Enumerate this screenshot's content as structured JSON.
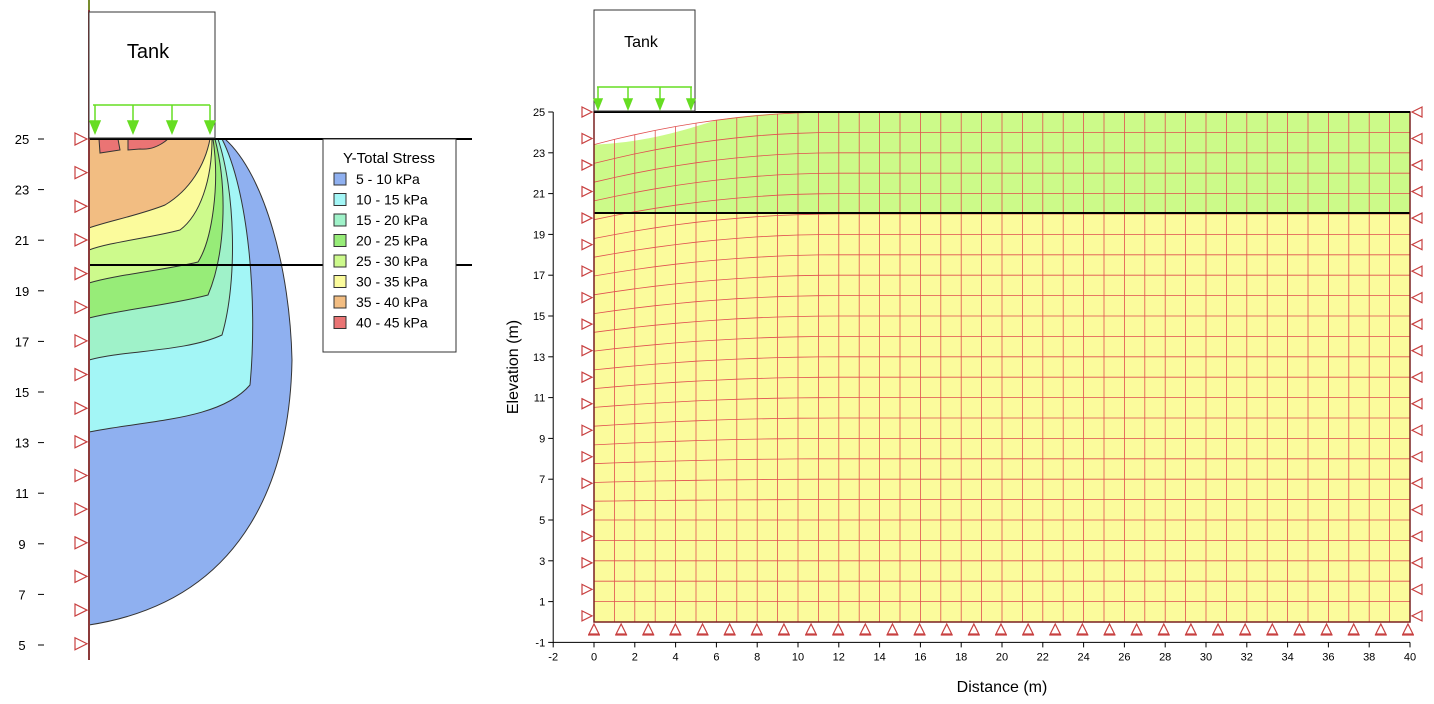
{
  "left_figure": {
    "tank_label": "Tank",
    "y_ticks": [
      "25",
      "23",
      "21",
      "19",
      "17",
      "15",
      "13",
      "11",
      "9",
      "7",
      "5"
    ],
    "legend": {
      "title": "Y-Total Stress",
      "entries": [
        {
          "label": "5 - 10 kPa",
          "color": "#8fb0f0"
        },
        {
          "label": "10 - 15 kPa",
          "color": "#a3f6f6"
        },
        {
          "label": "15 - 20 kPa",
          "color": "#9ff2c9"
        },
        {
          "label": "20 - 25 kPa",
          "color": "#97ec78"
        },
        {
          "label": "25 - 30 kPa",
          "color": "#cdfa8c"
        },
        {
          "label": "30 - 35 kPa",
          "color": "#fbfb9c"
        },
        {
          "label": "35 - 40 kPa",
          "color": "#f2bd82"
        },
        {
          "label": "40 - 45 kPa",
          "color": "#ea7474"
        }
      ]
    }
  },
  "right_figure": {
    "tank_label": "Tank",
    "x_label": "Distance (m)",
    "y_label": "Elevation (m)",
    "x_ticks": [
      "-2",
      "0",
      "2",
      "4",
      "6",
      "8",
      "10",
      "12",
      "14",
      "16",
      "18",
      "20",
      "22",
      "24",
      "26",
      "28",
      "30",
      "32",
      "34",
      "36",
      "38",
      "40"
    ],
    "y_ticks": [
      "25",
      "23",
      "21",
      "19",
      "17",
      "15",
      "13",
      "11",
      "9",
      "7",
      "5",
      "3",
      "1",
      "-1"
    ],
    "layers": [
      {
        "from": 20,
        "to": 25,
        "color": "#ccfa89"
      },
      {
        "from": 0,
        "to": 20,
        "color": "#fbfb9c"
      }
    ],
    "mesh_color": "#e05050",
    "load_color": "#66dd22"
  }
}
